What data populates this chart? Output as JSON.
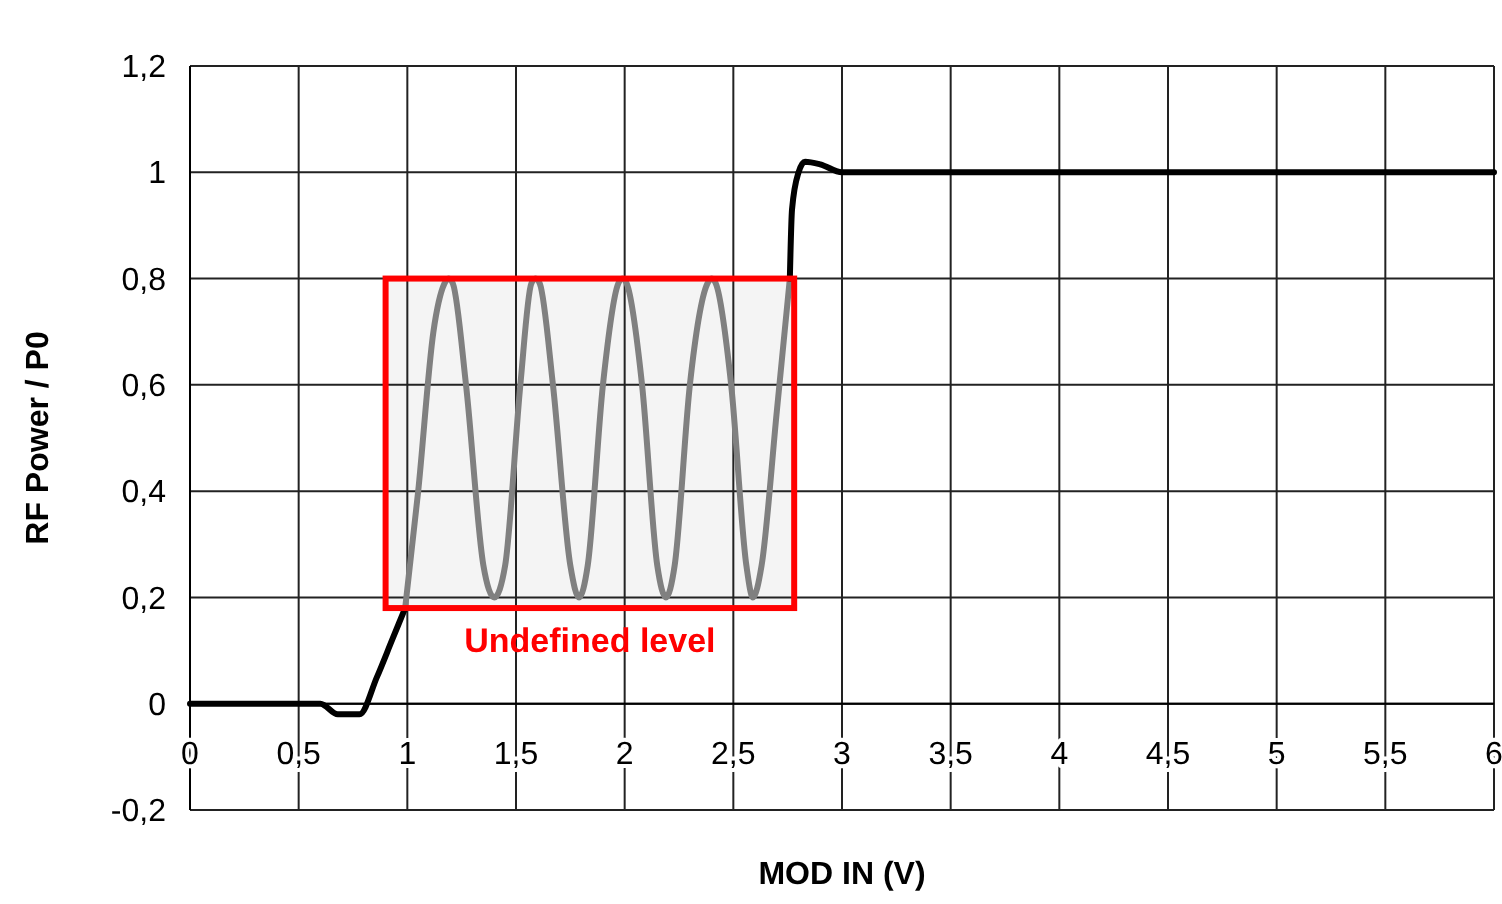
{
  "chart_data": {
    "type": "line",
    "xlabel": "MOD IN (V)",
    "ylabel": "RF Power / P0",
    "xlim": [
      0,
      6
    ],
    "ylim": [
      -0.2,
      1.2
    ],
    "xticks": [
      {
        "value": 0,
        "label": "0"
      },
      {
        "value": 0.5,
        "label": "0,5"
      },
      {
        "value": 1,
        "label": "1"
      },
      {
        "value": 1.5,
        "label": "1,5"
      },
      {
        "value": 2,
        "label": "2"
      },
      {
        "value": 2.5,
        "label": "2,5"
      },
      {
        "value": 3,
        "label": "3"
      },
      {
        "value": 3.5,
        "label": "3,5"
      },
      {
        "value": 4,
        "label": "4"
      },
      {
        "value": 4.5,
        "label": "4,5"
      },
      {
        "value": 5,
        "label": "5"
      },
      {
        "value": 5.5,
        "label": "5,5"
      },
      {
        "value": 6,
        "label": "6"
      }
    ],
    "yticks": [
      {
        "value": -0.2,
        "label": "-0,2"
      },
      {
        "value": 0,
        "label": "0"
      },
      {
        "value": 0.2,
        "label": "0,2"
      },
      {
        "value": 0.4,
        "label": "0,4"
      },
      {
        "value": 0.6,
        "label": "0,6"
      },
      {
        "value": 0.8,
        "label": "0,8"
      },
      {
        "value": 1,
        "label": "1"
      },
      {
        "value": 1.2,
        "label": "1,2"
      }
    ],
    "grid": true,
    "marker": "none",
    "line_style": "solid",
    "annotations": [
      "Undefined level"
    ],
    "series": [
      {
        "color": "#000000",
        "x": [
          0,
          0.6,
          0.68,
          0.78,
          0.86,
          0.93,
          0.99
        ],
        "values": [
          0,
          0,
          -0.02,
          -0.02,
          0.05,
          0.12,
          0.18
        ]
      },
      {
        "color": "#808080",
        "x": [
          0.99,
          1.05,
          1.12,
          1.17,
          1.19,
          1.21,
          1.27,
          1.35,
          1.4,
          1.45,
          1.52,
          1.57,
          1.59,
          1.61,
          1.67,
          1.75,
          1.79,
          1.83,
          1.9,
          1.97,
          1.99,
          2.01,
          2.08,
          2.15,
          2.19,
          2.23,
          2.3,
          2.38,
          2.4,
          2.42,
          2.49,
          2.56,
          2.59,
          2.63,
          2.7,
          2.76
        ],
        "values": [
          0.18,
          0.4,
          0.7,
          0.79,
          0.8,
          0.79,
          0.6,
          0.26,
          0.2,
          0.26,
          0.6,
          0.79,
          0.8,
          0.79,
          0.6,
          0.26,
          0.2,
          0.26,
          0.6,
          0.79,
          0.8,
          0.79,
          0.6,
          0.26,
          0.2,
          0.26,
          0.6,
          0.79,
          0.8,
          0.79,
          0.6,
          0.26,
          0.2,
          0.26,
          0.55,
          0.8
        ]
      },
      {
        "color": "#000000",
        "x": [
          2.76,
          2.77,
          2.8,
          2.83,
          2.9,
          3,
          4,
          5,
          6
        ],
        "values": [
          0.8,
          0.93,
          1.0,
          1.02,
          1.015,
          1.0,
          1.0,
          1.0,
          1.0
        ]
      }
    ]
  }
}
